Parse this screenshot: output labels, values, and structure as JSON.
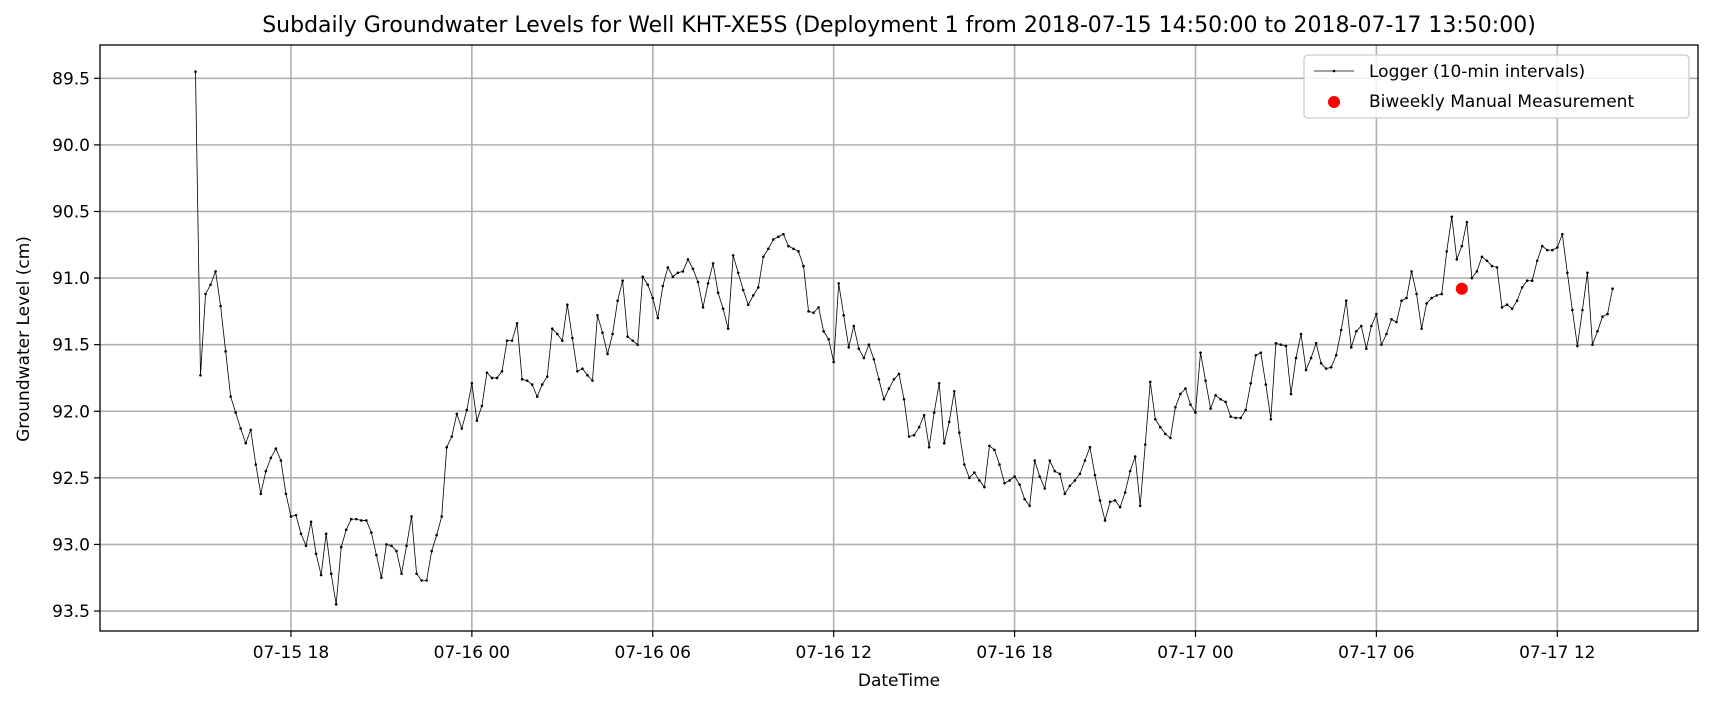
{
  "chart_data": {
    "type": "line",
    "title": "Subdaily Groundwater Levels for Well KHT-XE5S (Deployment 1 from 2018-07-15 14:50:00 to 2018-07-17 13:50:00)",
    "xlabel": "DateTime",
    "ylabel": "Groundwater Level (cm)",
    "y_inverted": true,
    "xlim": [
      "2018-07-15 11:40",
      "2018-07-17 16:40"
    ],
    "ylim": [
      89.25,
      93.65
    ],
    "xticks": [
      {
        "t": "2018-07-15 18:00",
        "label": "07-15 18"
      },
      {
        "t": "2018-07-16 00:00",
        "label": "07-16 00"
      },
      {
        "t": "2018-07-16 06:00",
        "label": "07-16 06"
      },
      {
        "t": "2018-07-16 12:00",
        "label": "07-16 12"
      },
      {
        "t": "2018-07-16 18:00",
        "label": "07-16 18"
      },
      {
        "t": "2018-07-17 00:00",
        "label": "07-17 00"
      },
      {
        "t": "2018-07-17 06:00",
        "label": "07-17 06"
      },
      {
        "t": "2018-07-17 12:00",
        "label": "07-17 12"
      }
    ],
    "yticks": [
      89.5,
      90.0,
      90.5,
      91.0,
      91.5,
      92.0,
      92.5,
      93.0,
      93.5
    ],
    "ytick_labels": [
      "89.5",
      "90.0",
      "90.5",
      "91.0",
      "91.5",
      "92.0",
      "92.5",
      "93.0",
      "93.5"
    ],
    "grid": true,
    "legend": "top-right",
    "series": [
      {
        "name": "Logger (10-min intervals)",
        "color": "#000000",
        "x_start": "2018-07-15 14:50",
        "x_step_minutes": 10,
        "values": [
          89.45,
          91.73,
          91.12,
          91.05,
          90.95,
          91.21,
          91.55,
          91.89,
          92.01,
          92.13,
          92.24,
          92.14,
          92.4,
          92.62,
          92.45,
          92.35,
          92.28,
          92.37,
          92.62,
          92.79,
          92.78,
          92.92,
          93.01,
          92.83,
          93.07,
          93.23,
          92.92,
          93.22,
          93.45,
          93.02,
          92.89,
          92.81,
          92.81,
          92.82,
          92.82,
          92.91,
          93.08,
          93.25,
          93.0,
          93.01,
          93.05,
          93.22,
          93.01,
          92.79,
          93.22,
          93.27,
          93.27,
          93.05,
          92.93,
          92.79,
          92.27,
          92.19,
          92.02,
          92.13,
          91.99,
          91.79,
          92.07,
          91.96,
          91.71,
          91.75,
          91.75,
          91.7,
          91.47,
          91.47,
          91.34,
          91.76,
          91.77,
          91.8,
          91.89,
          91.8,
          91.74,
          91.38,
          91.42,
          91.47,
          91.2,
          91.45,
          91.7,
          91.68,
          91.73,
          91.77,
          91.28,
          91.41,
          91.57,
          91.42,
          91.17,
          91.02,
          91.44,
          91.47,
          91.5,
          90.99,
          91.05,
          91.15,
          91.3,
          91.06,
          90.92,
          90.99,
          90.96,
          90.95,
          90.86,
          90.93,
          91.03,
          91.22,
          91.04,
          90.89,
          91.11,
          91.23,
          91.38,
          90.83,
          90.96,
          91.09,
          91.2,
          91.13,
          91.07,
          90.84,
          90.78,
          90.71,
          90.69,
          90.67,
          90.76,
          90.78,
          90.8,
          90.91,
          91.25,
          91.26,
          91.22,
          91.4,
          91.46,
          91.63,
          91.04,
          91.28,
          91.52,
          91.36,
          91.53,
          91.6,
          91.5,
          91.61,
          91.76,
          91.91,
          91.83,
          91.76,
          91.72,
          91.91,
          92.19,
          92.18,
          92.12,
          92.03,
          92.27,
          92.01,
          91.79,
          92.24,
          92.08,
          91.85,
          92.16,
          92.4,
          92.5,
          92.46,
          92.52,
          92.57,
          92.26,
          92.29,
          92.4,
          92.54,
          92.52,
          92.49,
          92.55,
          92.66,
          92.71,
          92.37,
          92.49,
          92.58,
          92.37,
          92.45,
          92.47,
          92.62,
          92.56,
          92.52,
          92.47,
          92.37,
          92.27,
          92.48,
          92.67,
          92.82,
          92.68,
          92.67,
          92.72,
          92.61,
          92.45,
          92.34,
          92.71,
          92.25,
          91.78,
          92.06,
          92.12,
          92.17,
          92.2,
          91.97,
          91.87,
          91.83,
          91.95,
          92.01,
          91.56,
          91.77,
          91.98,
          91.88,
          91.91,
          91.93,
          92.04,
          92.05,
          92.05,
          91.99,
          91.79,
          91.58,
          91.56,
          91.8,
          92.06,
          91.49,
          91.5,
          91.51,
          91.87,
          91.6,
          91.42,
          91.69,
          91.6,
          91.49,
          91.64,
          91.68,
          91.67,
          91.58,
          91.39,
          91.17,
          91.52,
          91.4,
          91.36,
          91.53,
          91.36,
          91.27,
          91.5,
          91.42,
          91.31,
          91.33,
          91.17,
          91.15,
          90.95,
          91.12,
          91.38,
          91.19,
          91.15,
          91.13,
          91.12,
          90.8,
          90.54,
          90.86,
          90.76,
          90.58,
          91.0,
          90.95,
          90.84,
          90.87,
          90.91,
          90.92,
          91.22,
          91.2,
          91.23,
          91.17,
          91.07,
          91.02,
          91.02,
          90.87,
          90.76,
          90.79,
          90.79,
          90.77,
          90.67,
          90.96,
          91.24,
          91.51,
          91.24,
          90.96,
          91.5,
          91.4,
          91.29,
          91.27,
          91.08
        ]
      },
      {
        "name": "Biweekly Manual Measurement",
        "color": "#ff0000",
        "points": [
          {
            "x": "2018-07-17 08:50",
            "y": 91.08
          }
        ]
      }
    ]
  }
}
